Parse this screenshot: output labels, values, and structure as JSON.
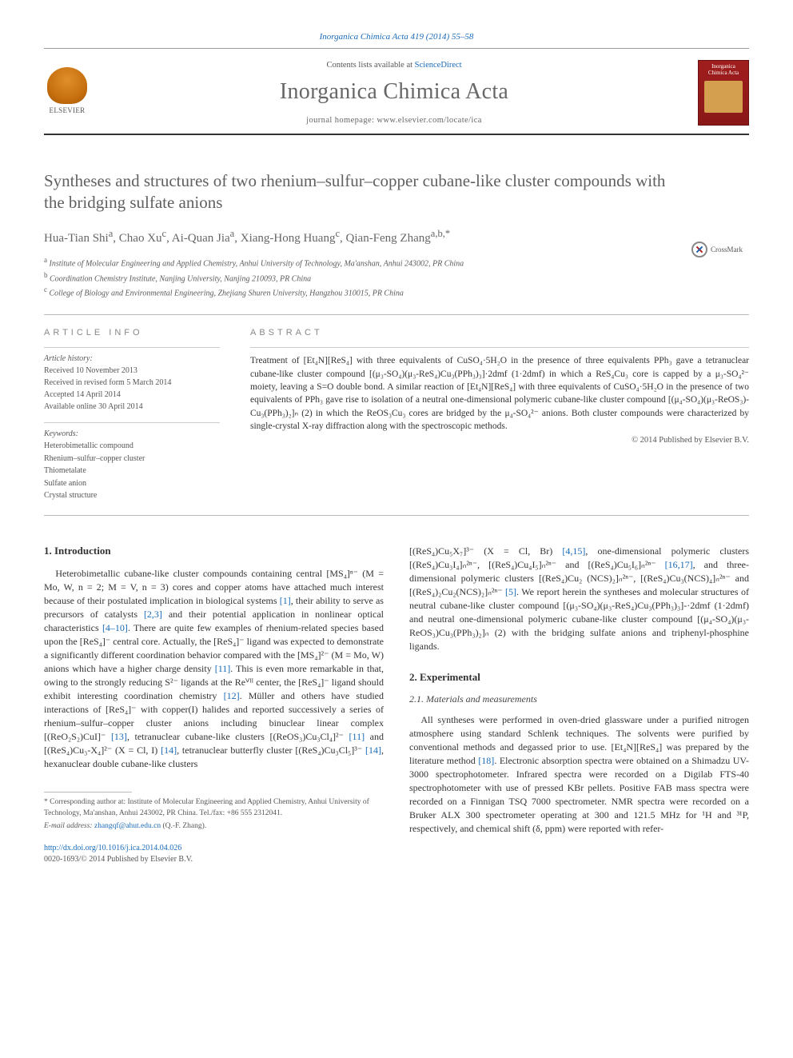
{
  "citation": "Inorganica Chimica Acta 419 (2014) 55–58",
  "header": {
    "contents_prefix": "Contents lists available at ",
    "contents_link": "ScienceDirect",
    "journal": "Inorganica Chimica Acta",
    "homepage_prefix": "journal homepage: ",
    "homepage_url": "www.elsevier.com/locate/ica",
    "publisher": "ELSEVIER",
    "cover_title": "Inorganica Chimica Acta"
  },
  "title": "Syntheses and structures of two rhenium–sulfur–copper cubane-like cluster compounds with the bridging sulfate anions",
  "crossmark": "CrossMark",
  "authors_html": "Hua-Tian Shi<sup>a</sup>, Chao Xu<sup>c</sup>, Ai-Quan Jia<sup>a</sup>, Xiang-Hong Huang<sup>c</sup>, Qian-Feng Zhang<sup>a,b,*</sup>",
  "affiliations": [
    {
      "label": "a",
      "text": "Institute of Molecular Engineering and Applied Chemistry, Anhui University of Technology, Ma'anshan, Anhui 243002, PR China"
    },
    {
      "label": "b",
      "text": "Coordination Chemistry Institute, Nanjing University, Nanjing 210093, PR China"
    },
    {
      "label": "c",
      "text": "College of Biology and Environmental Engineering, Zhejiang Shuren University, Hangzhou 310015, PR China"
    }
  ],
  "info_heading": "ARTICLE INFO",
  "abstract_heading": "ABSTRACT",
  "history": {
    "label": "Article history:",
    "lines": [
      "Received 10 November 2013",
      "Received in revised form 5 March 2014",
      "Accepted 14 April 2014",
      "Available online 30 April 2014"
    ]
  },
  "keywords": {
    "label": "Keywords:",
    "items": [
      "Heterobimetallic compound",
      "Rhenium–sulfur–copper cluster",
      "Thiometalate",
      "Sulfate anion",
      "Crystal structure"
    ]
  },
  "abstract": "Treatment of [Et₄N][ReS₄] with three equivalents of CuSO₄·5H₂O in the presence of three equivalents PPh₃ gave a tetranuclear cubane-like cluster compound [(μ₃-SO₄)(μ₃-ReS₄)Cu₃(PPh₃)₃]·2dmf (1·2dmf) in which a ReS₄Cu₃ core is capped by a μ₃-SO₄²⁻ moiety, leaving a S=O double bond. A similar reaction of [Et₄N][ReS₄] with three equivalents of CuSO₄·5H₂O in the presence of two equivalents of PPh₃ gave rise to isolation of a neutral one-dimensional polymeric cubane-like cluster compound [(μ₄-SO₄)(μ₃-ReOS₃)-Cu₃(PPh₃)₂]ₙ (2) in which the ReOS₃Cu₃ cores are bridged by the μ₄-SO₄²⁻ anions. Both cluster compounds were characterized by single-crystal X-ray diffraction along with the spectroscopic methods.",
  "copyright": "© 2014 Published by Elsevier B.V.",
  "sections": {
    "intro_heading": "1. Introduction",
    "intro_body": "Heterobimetallic cubane-like cluster compounds containing central [MS₄]ⁿ⁻ (M = Mo, W, n = 2; M = V, n = 3) cores and copper atoms have attached much interest because of their postulated implication in biological systems <span class=\"ref\">[1]</span>, their ability to serve as precursors of catalysts <span class=\"ref\">[2,3]</span> and their potential application in nonlinear optical characteristics <span class=\"ref\">[4–10]</span>. There are quite few examples of rhenium-related species based upon the [ReS₄]⁻ central core. Actually, the [ReS₄]⁻ ligand was expected to demonstrate a significantly different coordination behavior compared with the [MS₄]²⁻ (M = Mo, W) anions which have a higher charge density <span class=\"ref\">[11]</span>. This is even more remarkable in that, owing to the strongly reducing S²⁻ ligands at the Reⱽᴵᴵ center, the [ReS₄]⁻ ligand should exhibit interesting coordination chemistry <span class=\"ref\">[12]</span>. Müller and others have studied interactions of [ReS₄]⁻ with copper(I) halides and reported successively a series of rhenium–sulfur–copper cluster anions including binuclear linear complex [(ReO₂S₂)CuI]⁻ <span class=\"ref\">[13]</span>, tetranuclear cubane-like clusters [(ReOS₃)Cu₃Cl₄]²⁻ <span class=\"ref\">[11]</span> and [(ReS₄)Cu₃-X₄]²⁻ (X = Cl, I) <span class=\"ref\">[14]</span>, tetranuclear butterfly cluster [(ReS₄)Cu₃Cl₅]³⁻ <span class=\"ref\">[14]</span>, hexanuclear double cubane-like clusters",
    "col2_top": "[(ReS₄)Cu₅X₇]³⁻ (X = Cl, Br) <span class=\"ref\">[4,15]</span>, one-dimensional polymeric clusters [(ReS₄)Cu₃I₄]ₙ²ⁿ⁻, [(ReS₄)Cu₄I₅]ₙ²ⁿ⁻ and [(ReS₄)Cu₅I₆]ₙ²ⁿ⁻ <span class=\"ref\">[16,17]</span>, and three-dimensional polymeric clusters [(ReS₄)Cu₂ (NCS)₂]ₙ²ⁿ⁻, [(ReS₄)Cu₃(NCS)₄]ₙ²ⁿ⁻ and [(ReS₄)₂Cu₂(NCS)₂]ₙ²ⁿ⁻ <span class=\"ref\">[5]</span>. We report herein the syntheses and molecular structures of neutral cubane-like cluster compound [(μ₃-SO₄)(μ₃-ReS₄)Cu₃(PPh₃)₃]-·2dmf (1·2dmf) and neutral one-dimensional polymeric cubane-like cluster compound [(μ₄-SO₄)(μ₃-ReOS₃)Cu₃(PPh₃)₂]ₙ (2) with the bridging sulfate anions and triphenyl-phosphine ligands.",
    "exp_heading": "2. Experimental",
    "materials_heading": "2.1. Materials and measurements",
    "materials_body": "All syntheses were performed in oven-dried glassware under a purified nitrogen atmosphere using standard Schlenk techniques. The solvents were purified by conventional methods and degassed prior to use. [Et₄N][ReS₄] was prepared by the literature method <span class=\"ref\">[18]</span>. Electronic absorption spectra were obtained on a Shimadzu UV-3000 spectrophotometer. Infrared spectra were recorded on a Digilab FTS-40 spectrophotometer with use of pressed KBr pellets. Positive FAB mass spectra were recorded on a Finnigan TSQ 7000 spectrometer. NMR spectra were recorded on a Bruker ALX 300 spectrometer operating at 300 and 121.5 MHz for ¹H and ³¹P, respectively, and chemical shift (δ, ppm) were reported with refer-"
  },
  "footnotes": {
    "corr_label": "* Corresponding author at:",
    "corr_text": " Institute of Molecular Engineering and Applied Chemistry, Anhui University of Technology, Ma'anshan, Anhui 243002, PR China. Tel./fax: +86 555 2312041.",
    "email_label": "E-mail address:",
    "email": "zhangqf@ahut.edu.cn",
    "email_suffix": " (Q.-F. Zhang)."
  },
  "doi": {
    "url": "http://dx.doi.org/10.1016/j.ica.2014.04.026",
    "issn_line": "0020-1693/© 2014 Published by Elsevier B.V."
  },
  "colors": {
    "link": "#1a6bb8",
    "text": "#333333",
    "heading_gray": "#606060",
    "elsevier_orange": "#e0902a",
    "cover_red": "#a01d1d"
  }
}
